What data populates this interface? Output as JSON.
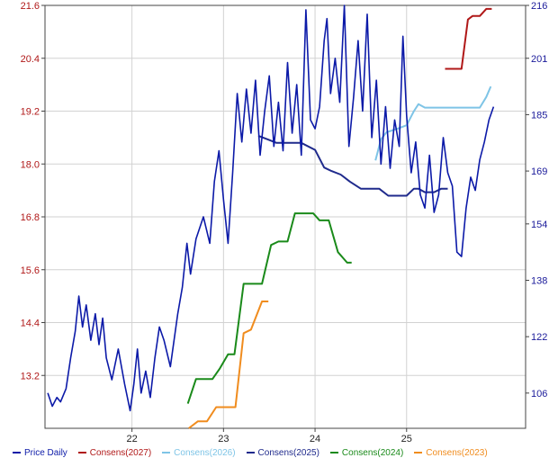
{
  "chart_data": {
    "type": "line",
    "x_ticks": [
      "22",
      "23",
      "24",
      "25"
    ],
    "y_left_ticks": [
      "21.6",
      "20.4",
      "19.2",
      "18.0",
      "16.8",
      "15.6",
      "14.4",
      "13.2"
    ],
    "y_right_ticks": [
      "216",
      "201",
      "185",
      "169",
      "154",
      "138",
      "122",
      "106"
    ],
    "x_range": [
      21.05,
      26.3
    ],
    "y_left_range": [
      12.0,
      21.6
    ],
    "y_right_range": [
      96,
      216
    ],
    "grid": true,
    "legend_placement": "bottom",
    "series": [
      {
        "name": "Price Daily",
        "axis": "left",
        "color": "#0c1aa8",
        "x": [
          21.08,
          21.13,
          21.18,
          21.22,
          21.28,
          21.33,
          21.38,
          21.42,
          21.46,
          21.5,
          21.55,
          21.6,
          21.64,
          21.68,
          21.72,
          21.78,
          21.85,
          21.92,
          21.98,
          22.02,
          22.06,
          22.1,
          22.15,
          22.2,
          22.25,
          22.3,
          22.35,
          22.42,
          22.5,
          22.55,
          22.6,
          22.64,
          22.7,
          22.78,
          22.85,
          22.9,
          22.95,
          23.0,
          23.05,
          23.1,
          23.15,
          23.2,
          23.25,
          23.3,
          23.35,
          23.4,
          23.45,
          23.5,
          23.55,
          23.6,
          23.65,
          23.7,
          23.75,
          23.8,
          23.85,
          23.9,
          23.95,
          24.0,
          24.05,
          24.1,
          24.13,
          24.17,
          24.22,
          24.27,
          24.32,
          24.37,
          24.42,
          24.47,
          24.52,
          24.57,
          24.62,
          24.67,
          24.72,
          24.77,
          24.82,
          24.87,
          24.92,
          24.96,
          25.0,
          25.05,
          25.1,
          25.15,
          25.2,
          25.25,
          25.3,
          25.35,
          25.4,
          25.45,
          25.5,
          25.55,
          25.6,
          25.65,
          25.7,
          25.75,
          25.8,
          25.85,
          25.9,
          25.95
        ],
        "values": [
          12.8,
          12.5,
          12.7,
          12.6,
          12.9,
          13.6,
          14.2,
          15.0,
          14.3,
          14.8,
          14.0,
          14.6,
          13.9,
          14.5,
          13.6,
          13.1,
          13.8,
          13.0,
          12.4,
          13.0,
          13.8,
          12.8,
          13.3,
          12.7,
          13.6,
          14.3,
          14.0,
          13.4,
          14.6,
          15.2,
          16.2,
          15.5,
          16.3,
          16.8,
          16.2,
          17.6,
          18.3,
          17.2,
          16.2,
          17.8,
          19.6,
          18.5,
          19.7,
          18.7,
          19.9,
          18.2,
          19.2,
          20.0,
          18.4,
          19.4,
          18.3,
          20.3,
          18.7,
          19.8,
          18.2,
          21.5,
          19.0,
          18.8,
          19.3,
          20.8,
          21.3,
          19.6,
          20.4,
          19.4,
          21.6,
          18.4,
          19.5,
          20.8,
          19.2,
          21.4,
          18.6,
          19.9,
          18.0,
          19.3,
          17.9,
          19.0,
          18.4,
          20.9,
          19.1,
          17.8,
          18.5,
          17.3,
          17.0,
          18.2,
          16.9,
          17.3,
          18.6,
          17.8,
          17.5,
          16.0,
          15.9,
          17.0,
          17.7,
          17.4,
          18.1,
          18.5,
          19.0,
          19.3
        ]
      },
      {
        "name": "Consens(2027)",
        "axis": "right",
        "color": "#b01818",
        "x": [
          25.42,
          25.52,
          25.6,
          25.67,
          25.72,
          25.8,
          25.87,
          25.93
        ],
        "values": [
          198,
          198,
          198,
          212,
          213,
          213,
          215,
          215
        ]
      },
      {
        "name": "Consens(2026)",
        "axis": "right",
        "color": "#7ec4e6",
        "x": [
          24.66,
          24.72,
          24.78,
          24.9,
          25.0,
          25.08,
          25.13,
          25.2,
          25.3,
          25.45,
          25.52,
          25.6,
          25.7,
          25.8,
          25.87,
          25.92
        ],
        "values": [
          172,
          178,
          180,
          181,
          182,
          186,
          188,
          187,
          187,
          187,
          187,
          187,
          187,
          187,
          190,
          193
        ]
      },
      {
        "name": "Consens(2025)",
        "axis": "right",
        "color": "#1f2a8c",
        "x": [
          23.38,
          23.48,
          23.58,
          23.7,
          23.85,
          24.0,
          24.1,
          24.18,
          24.28,
          24.38,
          24.5,
          24.6,
          24.7,
          24.8,
          24.92,
          25.0,
          25.08,
          25.13,
          25.2,
          25.3,
          25.38,
          25.45
        ],
        "values": [
          179,
          178,
          177,
          177,
          177,
          175,
          170,
          169,
          168,
          166,
          164,
          164,
          164,
          162,
          162,
          162,
          164,
          164,
          163,
          163,
          164,
          164
        ]
      },
      {
        "name": "Consens(2024)",
        "axis": "right",
        "color": "#1a8a1a",
        "x": [
          22.61,
          22.7,
          22.8,
          22.88,
          22.96,
          23.05,
          23.12,
          23.22,
          23.32,
          23.42,
          23.52,
          23.6,
          23.7,
          23.78,
          23.88,
          23.98,
          24.05,
          24.15,
          24.25,
          24.35,
          24.4
        ],
        "values": [
          103,
          110,
          110,
          110,
          113,
          117,
          117,
          137,
          137,
          137,
          148,
          149,
          149,
          157,
          157,
          157,
          155,
          155,
          146,
          143,
          143
        ]
      },
      {
        "name": "Consens(2023)",
        "axis": "right",
        "color": "#f08c1e",
        "x": [
          22.62,
          22.72,
          22.82,
          22.92,
          23.02,
          23.13,
          23.22,
          23.3,
          23.42,
          23.49
        ],
        "values": [
          96,
          98,
          98,
          102,
          102,
          102,
          123,
          124,
          132,
          132
        ]
      }
    ]
  }
}
